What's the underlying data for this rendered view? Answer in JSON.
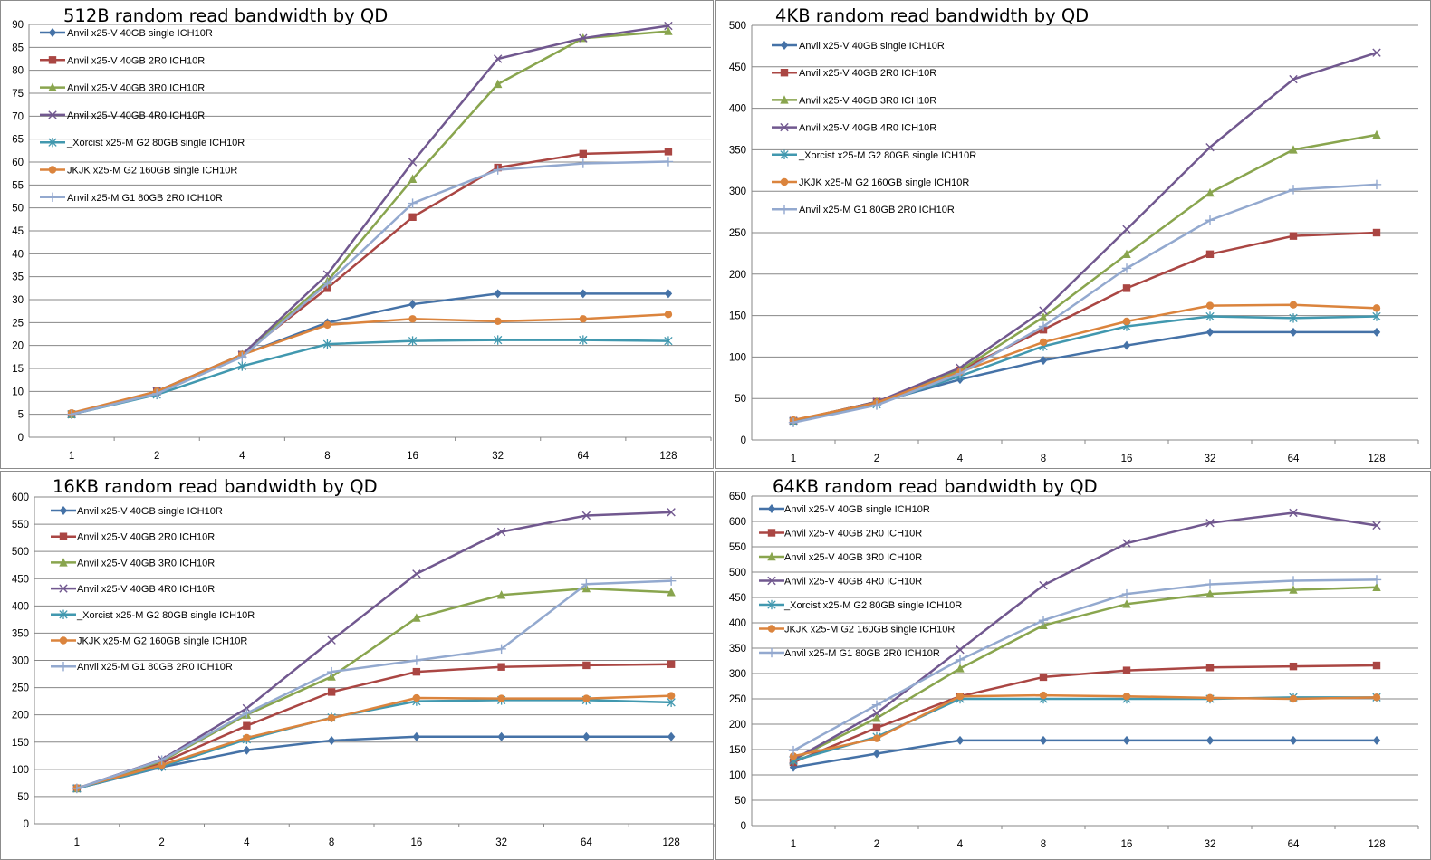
{
  "chart_data": [
    {
      "type": "line",
      "title": "512B random read bandwidth by QD",
      "xlabel": "",
      "ylabel": "",
      "categories": [
        "1",
        "2",
        "4",
        "8",
        "16",
        "32",
        "64",
        "128"
      ],
      "ylim": [
        0,
        90
      ],
      "ytick_step": 5,
      "grid": true,
      "legend_position": "top-left",
      "series": [
        {
          "name": "Anvil x25-V 40GB single ICH10R",
          "values": [
            5,
            9.5,
            18,
            25,
            29,
            31.3,
            31.3,
            31.3
          ]
        },
        {
          "name": "Anvil x25-V 40GB 2R0 ICH10R",
          "values": [
            5,
            10,
            18,
            32.5,
            48,
            58.8,
            61.8,
            62.3
          ]
        },
        {
          "name": "Anvil x25-V 40GB 3R0 ICH10R",
          "values": [
            5,
            10,
            18,
            34,
            56.3,
            77,
            87,
            88.5
          ]
        },
        {
          "name": "Anvil x25-V 40GB 4R0 ICH10R",
          "values": [
            5,
            10,
            18,
            35.5,
            60,
            82.5,
            87,
            89.7
          ]
        },
        {
          "name": "_Xorcist x25-M G2 80GB single ICH10R",
          "values": [
            5,
            9.3,
            15.5,
            20.3,
            21,
            21.2,
            21.2,
            21
          ]
        },
        {
          "name": "JKJK x25-M G2 160GB single ICH10R",
          "values": [
            5.3,
            10,
            18,
            24.5,
            25.8,
            25.3,
            25.8,
            26.8
          ]
        },
        {
          "name": "Anvil x25-M G1 80GB 2R0 ICH10R",
          "values": [
            5,
            9.5,
            17.5,
            33.5,
            51,
            58.3,
            59.7,
            60.1
          ]
        }
      ]
    },
    {
      "type": "line",
      "title": "4KB random read bandwidth by QD",
      "xlabel": "",
      "ylabel": "",
      "categories": [
        "1",
        "2",
        "4",
        "8",
        "16",
        "32",
        "64",
        "128"
      ],
      "ylim": [
        0,
        500
      ],
      "ytick_step": 50,
      "grid": true,
      "legend_position": "top-left",
      "series": [
        {
          "name": "Anvil x25-V 40GB single ICH10R",
          "values": [
            23,
            45,
            73,
            96,
            114,
            130,
            130,
            130
          ]
        },
        {
          "name": "Anvil x25-V 40GB 2R0 ICH10R",
          "values": [
            23,
            46,
            84,
            133,
            183,
            224,
            246,
            250
          ]
        },
        {
          "name": "Anvil x25-V 40GB 3R0 ICH10R",
          "values": [
            23,
            46,
            84,
            148,
            224,
            298,
            350,
            368
          ]
        },
        {
          "name": "Anvil x25-V 40GB 4R0 ICH10R",
          "values": [
            23,
            46,
            87,
            156,
            254,
            353,
            435,
            467
          ]
        },
        {
          "name": "_Xorcist x25-M G2 80GB single ICH10R",
          "values": [
            22,
            43,
            77,
            113,
            137,
            149,
            147,
            149
          ]
        },
        {
          "name": "JKJK x25-M G2 160GB single ICH10R",
          "values": [
            24,
            45,
            82,
            118,
            143,
            162,
            163,
            159
          ]
        },
        {
          "name": "Anvil x25-M G1 80GB 2R0 ICH10R",
          "values": [
            21,
            42,
            80,
            137,
            207,
            265,
            302,
            308
          ]
        }
      ]
    },
    {
      "type": "line",
      "title": "16KB random read bandwidth by QD",
      "xlabel": "",
      "ylabel": "",
      "categories": [
        "1",
        "2",
        "4",
        "8",
        "16",
        "32",
        "64",
        "128"
      ],
      "ylim": [
        0,
        600
      ],
      "ytick_step": 50,
      "grid": true,
      "legend_position": "top-left",
      "series": [
        {
          "name": "Anvil x25-V 40GB single ICH10R",
          "values": [
            65,
            104,
            135,
            153,
            160,
            160,
            160,
            160
          ]
        },
        {
          "name": "Anvil x25-V 40GB 2R0 ICH10R",
          "values": [
            65,
            112,
            180,
            242,
            279,
            288,
            291,
            293
          ]
        },
        {
          "name": "Anvil x25-V 40GB 3R0 ICH10R",
          "values": [
            65,
            115,
            200,
            270,
            378,
            420,
            432,
            425
          ]
        },
        {
          "name": "Anvil x25-V 40GB 4R0 ICH10R",
          "values": [
            65,
            118,
            212,
            337,
            459,
            536,
            566,
            572
          ]
        },
        {
          "name": "_Xorcist x25-M G2 80GB single ICH10R",
          "values": [
            65,
            105,
            155,
            195,
            225,
            227,
            227,
            223
          ]
        },
        {
          "name": "JKJK x25-M G2 160GB single ICH10R",
          "values": [
            66,
            108,
            158,
            194,
            231,
            230,
            230,
            235
          ]
        },
        {
          "name": "Anvil x25-M G1 80GB 2R0 ICH10R",
          "values": [
            65,
            117,
            203,
            279,
            300,
            321,
            440,
            446
          ]
        }
      ]
    },
    {
      "type": "line",
      "title": "64KB random read bandwidth by QD",
      "xlabel": "",
      "ylabel": "",
      "categories": [
        "1",
        "2",
        "4",
        "8",
        "16",
        "32",
        "64",
        "128"
      ],
      "ylim": [
        0,
        650
      ],
      "ytick_step": 50,
      "grid": true,
      "legend_position": "top-left",
      "series": [
        {
          "name": "Anvil x25-V 40GB single ICH10R",
          "values": [
            115,
            142,
            168,
            168,
            168,
            168,
            168,
            168
          ]
        },
        {
          "name": "Anvil x25-V 40GB 2R0 ICH10R",
          "values": [
            125,
            193,
            255,
            293,
            306,
            312,
            314,
            316
          ]
        },
        {
          "name": "Anvil x25-V 40GB 3R0 ICH10R",
          "values": [
            130,
            212,
            310,
            395,
            437,
            457,
            465,
            470
          ]
        },
        {
          "name": "Anvil x25-V 40GB 4R0 ICH10R",
          "values": [
            130,
            222,
            347,
            474,
            557,
            597,
            617,
            592
          ]
        },
        {
          "name": "_Xorcist x25-M G2 80GB single ICH10R",
          "values": [
            128,
            175,
            250,
            250,
            250,
            250,
            253,
            253
          ]
        },
        {
          "name": "JKJK x25-M G2 160GB single ICH10R",
          "values": [
            137,
            172,
            255,
            257,
            255,
            252,
            250,
            253
          ]
        },
        {
          "name": "Anvil x25-M G1 80GB 2R0 ICH10R",
          "values": [
            148,
            238,
            327,
            405,
            457,
            476,
            483,
            485
          ]
        }
      ]
    }
  ],
  "style": {
    "colors": [
      "#4572A7",
      "#AA4643",
      "#89A54E",
      "#71588F",
      "#4198AF",
      "#DB843D",
      "#93A9CF"
    ],
    "markers": [
      "diamond",
      "square",
      "triangle",
      "x",
      "asterisk",
      "circle",
      "plus"
    ]
  }
}
